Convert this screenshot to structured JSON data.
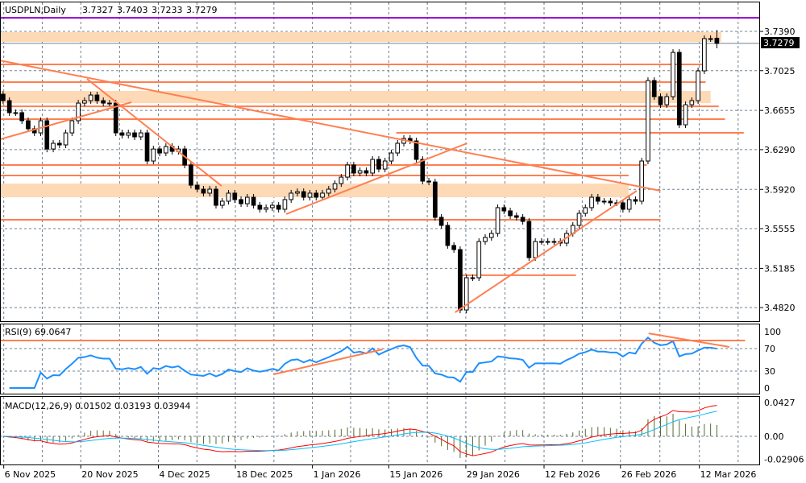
{
  "header": {
    "symbol": "USDPLN,Daily",
    "open": "3.7327",
    "high": "3.7403",
    "low": "3.7233",
    "close": "3.7279"
  },
  "rsi_label": "RSI(9) 69.0647",
  "macd_label": "MACD(12,26,9) 0.01502 0.03193 0.03944",
  "current_price_label": "3.7279",
  "colors": {
    "bull": "#ffffff",
    "bear": "#000000",
    "level": "#ff7f50",
    "zone": "#fdd9b5",
    "resistance_top": "#9400d3",
    "rsi": "#1e90ff",
    "macd_main": "#ff0000",
    "macd_signal": "#00bfff",
    "macd_hist": "#556b2f",
    "grid": "#708090"
  },
  "chart_data": {
    "type": "candlestick",
    "title": "USDPLN,Daily",
    "ylim": [
      3.4686,
      3.766
    ],
    "xlim": [
      -0.5,
      120.9
    ],
    "price_ticks": [
      "3.7390",
      "3.7025",
      "3.6655",
      "3.6290",
      "3.5920",
      "3.5555",
      "3.5185",
      "3.4820"
    ],
    "date_ticks": [
      {
        "bar": 0.1,
        "label": "6 Nov 2025"
      },
      {
        "bar": 12.4,
        "label": "20 Nov 2025"
      },
      {
        "bar": 24.8,
        "label": "4 Dec 2025"
      },
      {
        "bar": 37.1,
        "label": "18 Dec 2025"
      },
      {
        "bar": 49.4,
        "label": "1 Jan 2026"
      },
      {
        "bar": 61.6,
        "label": "15 Jan 2026"
      },
      {
        "bar": 73.9,
        "label": "29 Jan 2026"
      },
      {
        "bar": 86.4,
        "label": "12 Feb 2026"
      },
      {
        "bar": 98.6,
        "label": "26 Feb 2026"
      },
      {
        "bar": 111.2,
        "label": "12 Mar 2026"
      }
    ],
    "closes": [
      3.6746,
      3.6634,
      3.6634,
      3.6559,
      3.6484,
      3.6446,
      3.6559,
      3.6296,
      3.6349,
      3.6334,
      3.6446,
      3.6559,
      3.6723,
      3.6746,
      3.6798,
      3.6746,
      3.6723,
      3.6723,
      3.6446,
      3.6424,
      3.6446,
      3.6409,
      3.6446,
      3.6184,
      3.6296,
      3.6259,
      3.6319,
      3.6274,
      3.6296,
      3.6147,
      3.5959,
      3.5922,
      3.5885,
      3.5922,
      3.5772,
      3.581,
      3.5885,
      3.5825,
      3.5787,
      3.5847,
      3.5772,
      3.5735,
      3.575,
      3.5772,
      3.5735,
      3.5825,
      3.5885,
      3.5899,
      3.5847,
      3.5885,
      3.5847,
      3.5885,
      3.5922,
      3.5974,
      3.6034,
      3.6147,
      3.6072,
      3.6094,
      3.6072,
      3.6199,
      3.6109,
      3.6184,
      3.6259,
      3.6349,
      3.6394,
      3.6371,
      3.6199,
      3.5997,
      3.5989,
      3.566,
      3.5585,
      3.5398,
      3.536,
      3.4798,
      3.5098,
      3.5098,
      3.5435,
      3.5473,
      3.551,
      3.575,
      3.572,
      3.5675,
      3.566,
      3.5622,
      3.5285,
      3.5435,
      3.5435,
      3.5435,
      3.5435,
      3.542,
      3.551,
      3.5585,
      3.5697,
      3.575,
      3.5847,
      3.581,
      3.581,
      3.5795,
      3.5795,
      3.5735,
      3.5825,
      3.581,
      3.6184,
      3.6933,
      3.6783,
      3.6708,
      3.6783,
      3.7195,
      3.6521,
      3.6708,
      3.6746,
      3.7023,
      3.7323,
      3.7323,
      3.7279
    ],
    "last_bar": {
      "open": 3.7327,
      "high": 3.7403,
      "low": 3.7233,
      "close": 3.7279
    },
    "top_level": 3.7517,
    "zones": [
      {
        "from_bar": -1,
        "to_bar": 114.7,
        "top": 3.7383,
        "bottom": 3.7293
      },
      {
        "from_bar": -1,
        "to_bar": 113,
        "top": 3.6836,
        "bottom": 3.6723
      },
      {
        "from_bar": -1,
        "to_bar": 99.9,
        "top": 3.5974,
        "bottom": 3.5847
      }
    ],
    "levels": [
      {
        "price": 3.7083,
        "from_bar": -1,
        "to_bar": 112.2
      },
      {
        "price": 3.6918,
        "from_bar": -1,
        "to_bar": 112.2
      },
      {
        "price": 3.6693,
        "from_bar": -1,
        "to_bar": 114.3
      },
      {
        "price": 3.6574,
        "from_bar": -1,
        "to_bar": 115.3
      },
      {
        "price": 3.6446,
        "from_bar": 62.8,
        "to_bar": 118.3
      },
      {
        "price": 3.6147,
        "from_bar": -1,
        "to_bar": 102.8
      },
      {
        "price": 3.6049,
        "from_bar": -1,
        "to_bar": 99.9
      },
      {
        "price": 3.5637,
        "from_bar": -1,
        "to_bar": 105
      },
      {
        "price": 3.5121,
        "from_bar": 72.8,
        "to_bar": 91.5
      }
    ],
    "trendlines": [
      {
        "b1": -0.5,
        "p1": 3.712,
        "b2": 105,
        "p2": 3.5907
      },
      {
        "b1": -0.5,
        "p1": 3.6386,
        "b2": 20.5,
        "p2": 3.6731
      },
      {
        "b1": 13.4,
        "p1": 3.6948,
        "b2": 34.9,
        "p2": 3.5952
      },
      {
        "b1": 45.2,
        "p1": 3.569,
        "b2": 74.1,
        "p2": 3.6349
      },
      {
        "b1": 72.2,
        "p1": 3.4776,
        "b2": 101.2,
        "p2": 3.5907
      }
    ],
    "rsi": {
      "period": 9,
      "ticks": [
        "100",
        "70",
        "30",
        "0"
      ],
      "level": 84.3,
      "trendlines": [
        {
          "b1": 43.2,
          "v1": 24.3,
          "b2": 60.6,
          "v2": 68.6
        },
        {
          "b1": 103.1,
          "v1": 97,
          "b2": 116,
          "v2": 72.9
        }
      ]
    },
    "macd": {
      "fast": 12,
      "slow": 26,
      "signal": 9,
      "ylim": [
        -0.0366,
        0.0498
      ],
      "ticks": [
        "0.0427",
        "0.00",
        "-0.02906"
      ]
    }
  }
}
